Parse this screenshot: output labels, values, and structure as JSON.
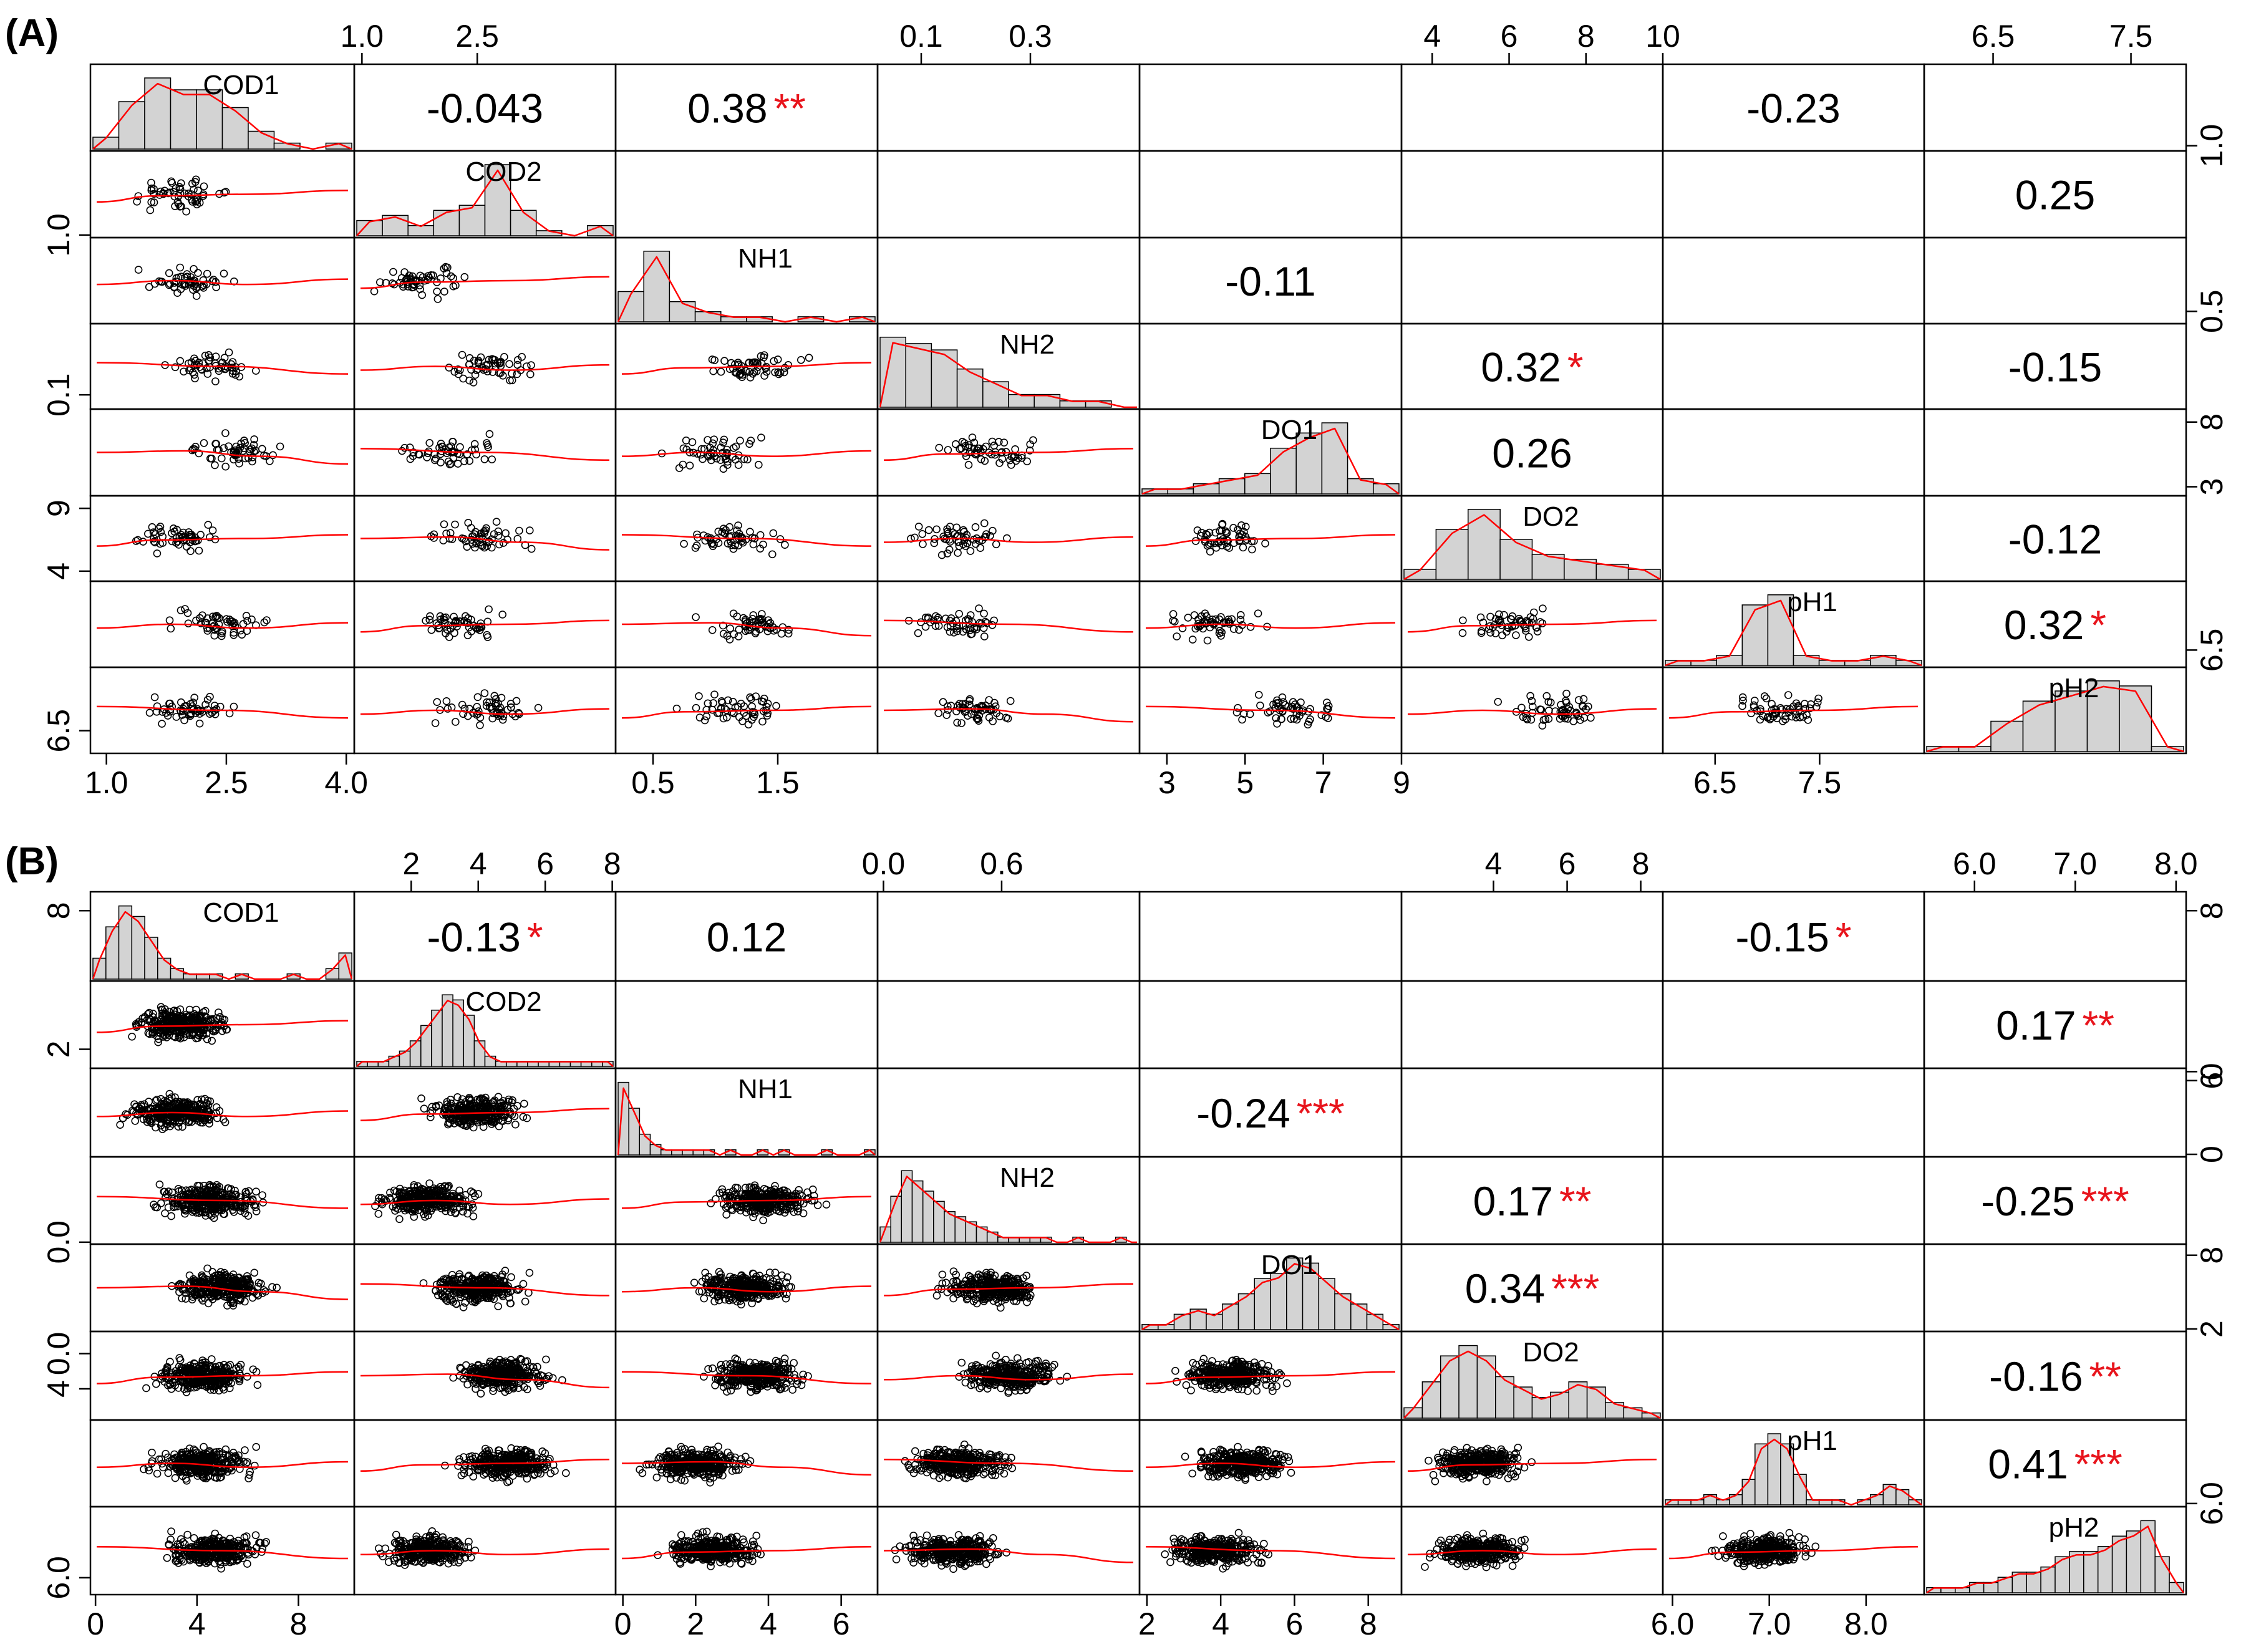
{
  "colors": {
    "histogram_fill": "#d3d3d3",
    "smooth_line": "#ff0000",
    "stars": "#e8141c",
    "points": "#000000"
  },
  "chart_data": [
    {
      "type": "scatter-matrix",
      "panel_label": "(A)",
      "variables": [
        "COD1",
        "COD2",
        "NH1",
        "NH2",
        "DO1",
        "DO2",
        "pH1",
        "pH2"
      ],
      "ranges": [
        [
          0.8,
          4.1
        ],
        [
          0.9,
          4.3
        ],
        [
          0.2,
          2.3
        ],
        [
          0.02,
          0.5
        ],
        [
          2.3,
          9.0
        ],
        [
          3.2,
          10.0
        ],
        [
          6.0,
          8.5
        ],
        [
          6.0,
          7.9
        ]
      ],
      "ticks": {
        "top": [
          {
            "col": 1,
            "values": [
              "1.0",
              "2.5"
            ]
          },
          {
            "col": 3,
            "values": [
              "0.1",
              "0.3"
            ]
          },
          {
            "col": 5,
            "values": [
              "4",
              "6",
              "8",
              "10"
            ]
          },
          {
            "col": 7,
            "values": [
              "6.5",
              "7.5"
            ]
          }
        ],
        "bottom": [
          {
            "col": 0,
            "values": [
              "1.0",
              "2.5",
              "4.0"
            ]
          },
          {
            "col": 2,
            "values": [
              "0.5",
              "1.5"
            ]
          },
          {
            "col": 4,
            "values": [
              "3",
              "5",
              "7",
              "9"
            ]
          },
          {
            "col": 6,
            "values": [
              "6.5",
              "7.5"
            ]
          }
        ],
        "left": [
          {
            "row": 1,
            "values": [
              "1.0"
            ]
          },
          {
            "row": 3,
            "values": [
              "0.1"
            ]
          },
          {
            "row": 5,
            "values": [
              "4",
              "9"
            ]
          },
          {
            "row": 7,
            "values": [
              "6.5"
            ]
          }
        ],
        "right": [
          {
            "row": 0,
            "values": [
              "1.0"
            ]
          },
          {
            "row": 2,
            "values": [
              "0.5"
            ]
          },
          {
            "row": 4,
            "values": [
              "3",
              "8"
            ]
          },
          {
            "row": 6,
            "values": [
              "6.5"
            ]
          }
        ]
      },
      "correlations": [
        {
          "row": 0,
          "col": 1,
          "r": "-0.043",
          "stars": ""
        },
        {
          "row": 0,
          "col": 2,
          "r": "0.38",
          "stars": "**"
        },
        {
          "row": 0,
          "col": 6,
          "r": "-0.23",
          "stars": ""
        },
        {
          "row": 1,
          "col": 7,
          "r": "0.25",
          "stars": ""
        },
        {
          "row": 2,
          "col": 4,
          "r": "-0.11",
          "stars": ""
        },
        {
          "row": 3,
          "col": 5,
          "r": "0.32",
          "stars": "*"
        },
        {
          "row": 3,
          "col": 7,
          "r": "-0.15",
          "stars": ""
        },
        {
          "row": 4,
          "col": 5,
          "r": "0.26",
          "stars": ""
        },
        {
          "row": 5,
          "col": 7,
          "r": "-0.12",
          "stars": ""
        },
        {
          "row": 6,
          "col": 7,
          "r": "0.32",
          "stars": "*"
        }
      ],
      "histograms": [
        [
          2,
          8,
          12,
          10,
          10,
          7,
          3,
          1,
          0,
          1
        ],
        [
          3,
          4,
          2,
          5,
          6,
          14,
          5,
          1,
          0,
          2
        ],
        [
          6,
          14,
          4,
          2,
          1,
          1,
          0,
          1,
          0,
          1
        ],
        [
          11,
          10,
          9,
          6,
          4,
          2,
          2,
          1,
          1,
          0
        ],
        [
          1,
          1,
          2,
          3,
          4,
          9,
          12,
          14,
          3,
          2
        ],
        [
          2,
          10,
          14,
          8,
          5,
          4,
          3,
          2
        ],
        [
          1,
          1,
          2,
          12,
          14,
          2,
          1,
          1,
          2,
          1
        ],
        [
          1,
          1,
          6,
          10,
          12,
          14,
          13,
          1
        ]
      ]
    },
    {
      "type": "scatter-matrix",
      "panel_label": "(B)",
      "variables": [
        "COD1",
        "COD2",
        "NH1",
        "NH2",
        "DO1",
        "DO2",
        "pH1",
        "pH2"
      ],
      "ranges": [
        [
          -0.2,
          10.2
        ],
        [
          0.3,
          8.1
        ],
        [
          -0.2,
          7.0
        ],
        [
          -0.03,
          1.3
        ],
        [
          1.8,
          8.9
        ],
        [
          1.5,
          8.6
        ],
        [
          5.9,
          8.6
        ],
        [
          5.5,
          8.1
        ]
      ],
      "ticks": {
        "top": [
          {
            "col": 1,
            "values": [
              "2",
              "4",
              "6",
              "8"
            ]
          },
          {
            "col": 3,
            "values": [
              "0.0",
              "0.6"
            ]
          },
          {
            "col": 5,
            "values": [
              "4",
              "6",
              "8"
            ]
          },
          {
            "col": 7,
            "values": [
              "6.0",
              "7.0",
              "8.0"
            ]
          }
        ],
        "bottom": [
          {
            "col": 0,
            "values": [
              "0",
              "4",
              "8"
            ]
          },
          {
            "col": 2,
            "values": [
              "0",
              "2",
              "4",
              "6"
            ]
          },
          {
            "col": 4,
            "values": [
              "2",
              "4",
              "6",
              "8"
            ]
          },
          {
            "col": 6,
            "values": [
              "6.0",
              "7.0",
              "8.0"
            ]
          }
        ],
        "left": [
          {
            "row": 0,
            "values": [
              "8"
            ]
          },
          {
            "row": 1,
            "values": [
              "2"
            ]
          },
          {
            "row": 3,
            "values": [
              "0.0"
            ]
          },
          {
            "row": 4,
            "values": [
              "0.0"
            ]
          },
          {
            "row": 5,
            "values": [
              "4"
            ]
          },
          {
            "row": 7,
            "values": [
              "6.0"
            ]
          }
        ],
        "right": [
          {
            "row": 0,
            "values": [
              "8"
            ]
          },
          {
            "row": 1,
            "values": [
              "0"
            ]
          },
          {
            "row": 2,
            "values": [
              "6",
              "0"
            ]
          },
          {
            "row": 4,
            "values": [
              "8",
              "2"
            ]
          },
          {
            "row": 6,
            "values": [
              "6.0"
            ]
          }
        ]
      },
      "correlations": [
        {
          "row": 0,
          "col": 1,
          "r": "-0.13",
          "stars": "*"
        },
        {
          "row": 0,
          "col": 2,
          "r": "0.12",
          "stars": ""
        },
        {
          "row": 0,
          "col": 6,
          "r": "-0.15",
          "stars": "*"
        },
        {
          "row": 1,
          "col": 7,
          "r": "0.17",
          "stars": "**"
        },
        {
          "row": 2,
          "col": 4,
          "r": "-0.24",
          "stars": "***"
        },
        {
          "row": 3,
          "col": 5,
          "r": "0.17",
          "stars": "**"
        },
        {
          "row": 3,
          "col": 7,
          "r": "-0.25",
          "stars": "***"
        },
        {
          "row": 4,
          "col": 5,
          "r": "0.34",
          "stars": "***"
        },
        {
          "row": 5,
          "col": 7,
          "r": "-0.16",
          "stars": "**"
        },
        {
          "row": 6,
          "col": 7,
          "r": "0.41",
          "stars": "***"
        }
      ],
      "histograms": [
        [
          4,
          10,
          14,
          12,
          8,
          4,
          2,
          1,
          1,
          1,
          0,
          1,
          0,
          0,
          0,
          1,
          0,
          0,
          2,
          5
        ],
        [
          1,
          1,
          1,
          2,
          3,
          5,
          8,
          11,
          14,
          13,
          10,
          5,
          2,
          1,
          1,
          1,
          1,
          1,
          1,
          1,
          1,
          1,
          1,
          1
        ],
        [
          14,
          9,
          4,
          2,
          1,
          1,
          1,
          1,
          1,
          0,
          1,
          0,
          0,
          1,
          0,
          1,
          0,
          0,
          0,
          1,
          0,
          0,
          0,
          1
        ],
        [
          3,
          9,
          14,
          12,
          10,
          8,
          6,
          5,
          4,
          3,
          2,
          1,
          1,
          1,
          1,
          1,
          0,
          0,
          1,
          0,
          0,
          0,
          1,
          0
        ],
        [
          1,
          1,
          3,
          4,
          3,
          5,
          7,
          10,
          11,
          14,
          13,
          10,
          7,
          5,
          3,
          1
        ],
        [
          2,
          7,
          12,
          14,
          12,
          8,
          6,
          4,
          5,
          7,
          6,
          3,
          2,
          1
        ],
        [
          1,
          1,
          1,
          2,
          1,
          2,
          5,
          12,
          14,
          12,
          6,
          1,
          1,
          1,
          0,
          1,
          2,
          4,
          3,
          1
        ],
        [
          1,
          1,
          1,
          2,
          2,
          3,
          4,
          4,
          5,
          7,
          8,
          8,
          9,
          11,
          12,
          14,
          7,
          2
        ]
      ]
    }
  ]
}
